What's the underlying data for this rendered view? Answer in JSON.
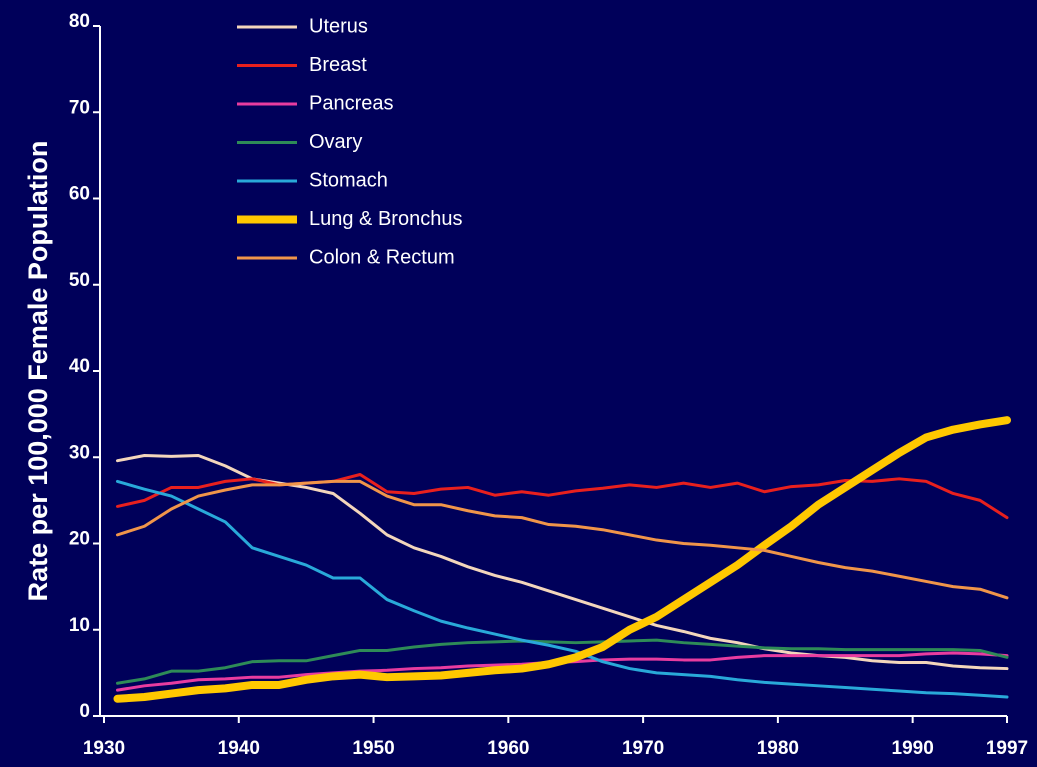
{
  "chart_data": {
    "type": "line",
    "y_label": "Rate per 100,000 Female Population",
    "xlim": [
      1930,
      1997
    ],
    "xticks": [
      1930,
      1940,
      1950,
      1960,
      1970,
      1980,
      1990,
      1997
    ],
    "ylim": [
      0,
      80
    ],
    "yticks": [
      0,
      10,
      20,
      30,
      40,
      50,
      60,
      70,
      80
    ],
    "legend": "top",
    "x": [
      1931,
      1933,
      1935,
      1937,
      1939,
      1941,
      1943,
      1945,
      1947,
      1949,
      1951,
      1953,
      1955,
      1957,
      1959,
      1961,
      1963,
      1965,
      1967,
      1969,
      1971,
      1973,
      1975,
      1977,
      1979,
      1981,
      1983,
      1985,
      1987,
      1989,
      1991,
      1993,
      1995,
      1997
    ],
    "series": [
      {
        "name": "Uterus",
        "color": "#f3d6bc",
        "linewidth": 3,
        "values": [
          29.6,
          30.2,
          30.1,
          30.2,
          29,
          27.5,
          27,
          26.5,
          25.8,
          23.5,
          21,
          19.5,
          18.5,
          17.3,
          16.3,
          15.5,
          14.5,
          13.5,
          12.5,
          11.5,
          10.5,
          9.8,
          9,
          8.5,
          7.8,
          7.3,
          7,
          6.8,
          6.4,
          6.2,
          6.2,
          5.8,
          5.6,
          5.5
        ]
      },
      {
        "name": "Breast",
        "color": "#e8201e",
        "linewidth": 3,
        "values": [
          24.3,
          25,
          26.5,
          26.5,
          27.2,
          27.5,
          26.8,
          27,
          27.2,
          28,
          26,
          25.8,
          26.3,
          26.5,
          25.6,
          26,
          25.6,
          26.1,
          26.4,
          26.8,
          26.5,
          27,
          26.5,
          27,
          26,
          26.6,
          26.8,
          27.3,
          27.2,
          27.5,
          27.2,
          25.8,
          25,
          23
        ]
      },
      {
        "name": "Pancreas",
        "color": "#e83ca0",
        "linewidth": 3,
        "values": [
          3,
          3.5,
          3.8,
          4.2,
          4.3,
          4.5,
          4.5,
          4.8,
          5,
          5.2,
          5.3,
          5.5,
          5.6,
          5.8,
          5.9,
          6,
          6.2,
          6.3,
          6.5,
          6.6,
          6.6,
          6.5,
          6.5,
          6.8,
          7,
          7,
          7,
          7,
          7,
          7,
          7.2,
          7.3,
          7.2,
          7
        ]
      },
      {
        "name": "Ovary",
        "color": "#2e8b57",
        "linewidth": 3,
        "values": [
          3.8,
          4.3,
          5.2,
          5.2,
          5.6,
          6.3,
          6.4,
          6.4,
          7,
          7.6,
          7.6,
          8,
          8.3,
          8.5,
          8.6,
          8.7,
          8.6,
          8.5,
          8.6,
          8.7,
          8.8,
          8.5,
          8.3,
          8.1,
          7.9,
          7.8,
          7.8,
          7.7,
          7.7,
          7.7,
          7.7,
          7.7,
          7.6,
          6.8
        ]
      },
      {
        "name": "Stomach",
        "color": "#29a9d9",
        "linewidth": 3,
        "values": [
          27.2,
          26.3,
          25.5,
          24,
          22.5,
          19.5,
          18.5,
          17.5,
          16,
          16,
          13.5,
          12.2,
          11,
          10.2,
          9.5,
          8.8,
          8.2,
          7.5,
          6.3,
          5.5,
          5,
          4.8,
          4.6,
          4.2,
          3.9,
          3.7,
          3.5,
          3.3,
          3.1,
          2.9,
          2.7,
          2.6,
          2.4,
          2.2
        ]
      },
      {
        "name": "Lung & Bronchus",
        "color": "#ffc800",
        "linewidth": 8,
        "values": [
          2,
          2.2,
          2.6,
          3,
          3.2,
          3.6,
          3.6,
          4.2,
          4.6,
          4.8,
          4.5,
          4.6,
          4.7,
          5,
          5.3,
          5.5,
          6,
          6.8,
          8,
          10,
          11.5,
          13.5,
          15.5,
          17.5,
          19.8,
          22,
          24.5,
          26.5,
          28.5,
          30.5,
          32.3,
          33.2,
          33.8,
          34.3
        ]
      },
      {
        "name": "Colon & Rectum",
        "color": "#f0954a",
        "linewidth": 3,
        "values": [
          21,
          22,
          24,
          25.5,
          26.2,
          26.8,
          26.8,
          27,
          27.2,
          27.2,
          25.5,
          24.5,
          24.5,
          23.8,
          23.2,
          23,
          22.2,
          22,
          21.6,
          21,
          20.4,
          20,
          19.8,
          19.5,
          19.2,
          18.5,
          17.8,
          17.2,
          16.8,
          16.2,
          15.6,
          15,
          14.7,
          13.7
        ]
      }
    ]
  }
}
